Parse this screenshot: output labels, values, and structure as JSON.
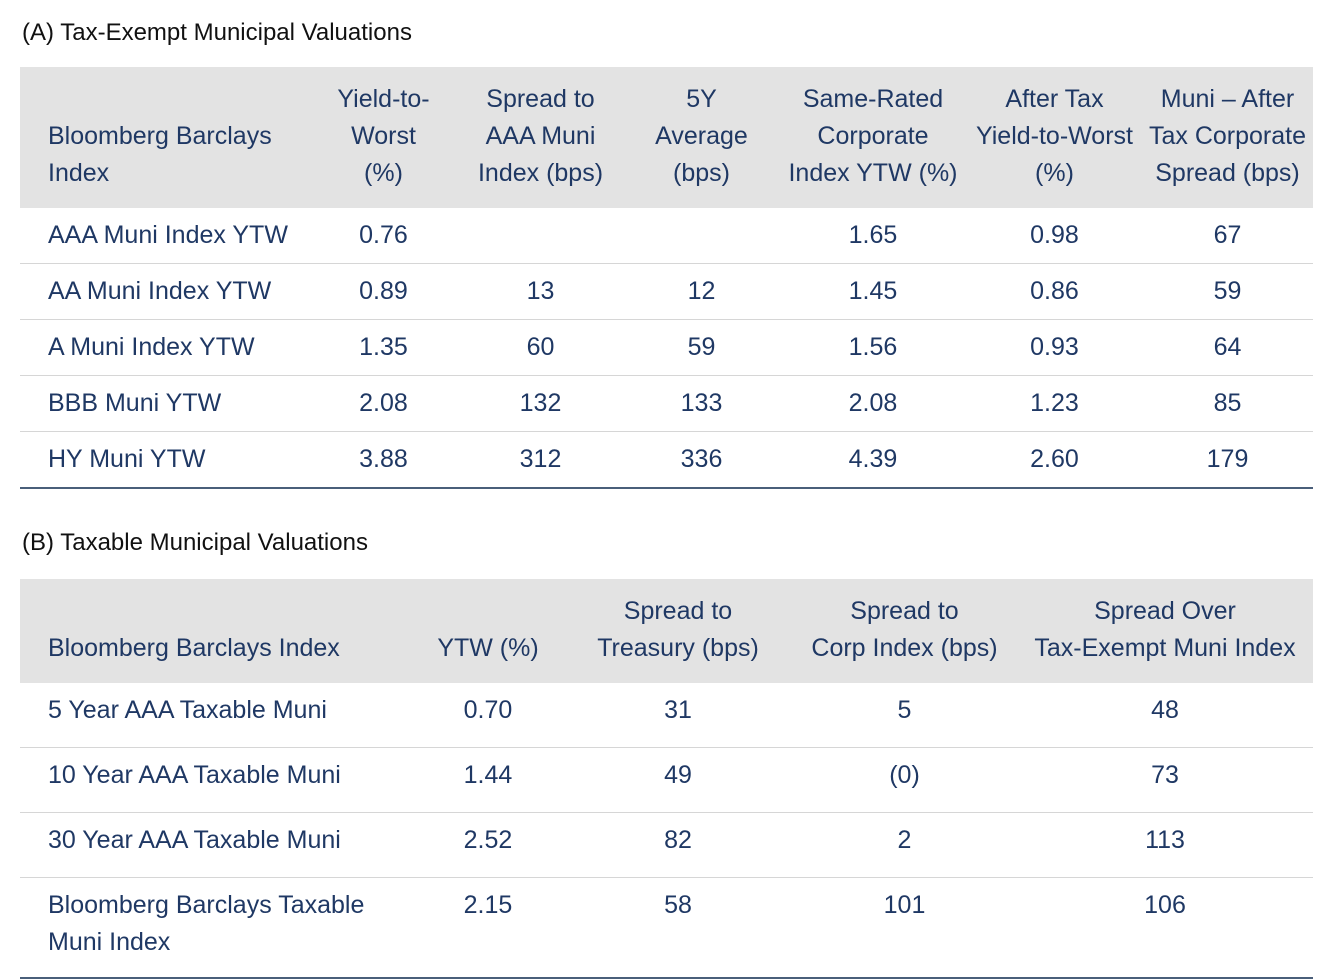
{
  "section_a": {
    "title": "(A) Tax-Exempt Municipal Valuations",
    "headers": [
      "Bloomberg Barclays Index",
      "Yield-to-Worst (%)",
      "Spread to AAA Muni Index (bps)",
      "5Y Average (bps)",
      "Same-Rated Corporate Index YTW (%)",
      "After Tax Yield-to-Worst (%)",
      "Muni – After Tax Corporate Spread (bps)"
    ],
    "rows": [
      [
        "AAA Muni Index YTW",
        "0.76",
        "",
        "",
        "1.65",
        "0.98",
        "67"
      ],
      [
        "AA Muni Index YTW",
        "0.89",
        "13",
        "12",
        "1.45",
        "0.86",
        "59"
      ],
      [
        "A Muni Index YTW",
        "1.35",
        "60",
        "59",
        "1.56",
        "0.93",
        "64"
      ],
      [
        "BBB Muni YTW",
        "2.08",
        "132",
        "133",
        "2.08",
        "1.23",
        "85"
      ],
      [
        "HY Muni YTW",
        "3.88",
        "312",
        "336",
        "4.39",
        "2.60",
        "179"
      ]
    ]
  },
  "section_b": {
    "title": "(B) Taxable Municipal Valuations",
    "headers": [
      "Bloomberg Barclays Index",
      "YTW (%)",
      "Spread to Treasury (bps)",
      "Spread to Corp Index (bps)",
      "Spread Over Tax-Exempt Muni Index"
    ],
    "rows": [
      [
        "5 Year AAA Taxable Muni",
        "0.70",
        "31",
        "5",
        "48"
      ],
      [
        "10 Year AAA Taxable Muni",
        "1.44",
        "49",
        "(0)",
        "73"
      ],
      [
        "30 Year AAA Taxable Muni",
        "2.52",
        "82",
        "2",
        "113"
      ],
      [
        "Bloomberg Barclays Taxable Muni Index",
        "2.15",
        "58",
        "101",
        "106"
      ]
    ]
  },
  "colors": {
    "text": "#1f3864",
    "header_bg": "#e3e3e3",
    "row_divider": "#d6d6d6",
    "bottom_rule": "#4a5f7a"
  }
}
